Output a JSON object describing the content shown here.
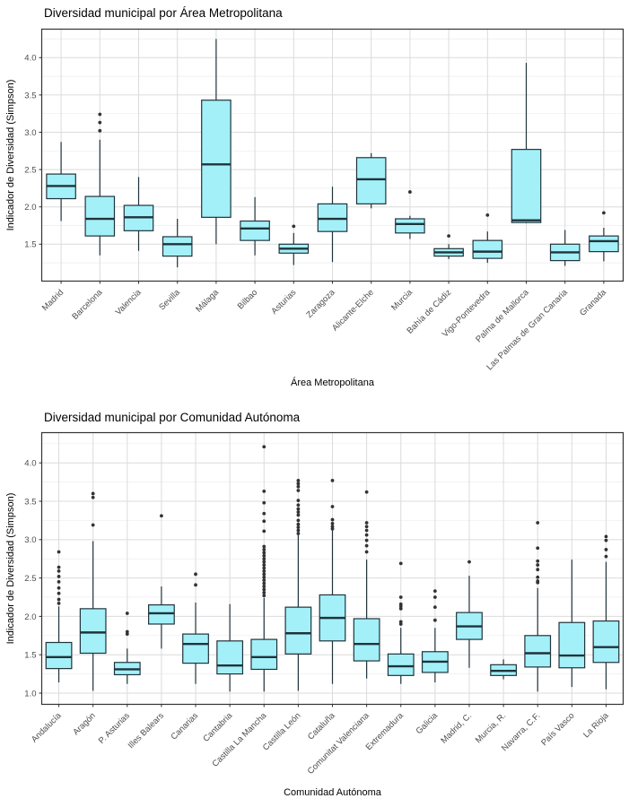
{
  "style": {
    "box_fill": "#A3F0F9",
    "box_stroke": "#20333B",
    "outlier_color": "#333333",
    "grid_major": "#DBDBDB",
    "grid_minor": "#EDEDED",
    "panel_border": "#333333",
    "panel_bg": "#FFFFFF",
    "tick_label_color": "#4D4D4D",
    "title_color": "#000000"
  },
  "chart_data": [
    {
      "type": "boxplot",
      "title": "Diversidad municipal por Área Metropolitana",
      "xlabel": "Área Metropolitana",
      "ylabel": "Indicador de Diversidad (Simpson)",
      "y_ticks": [
        1.5,
        2.0,
        2.5,
        3.0,
        3.5,
        4.0
      ],
      "y_domain": [
        1.005,
        4.382
      ],
      "grid": true,
      "legend": "none",
      "boxes": [
        {
          "label": "Madrid",
          "low": 1.81,
          "q1": 2.11,
          "median": 2.28,
          "q3": 2.44,
          "high": 2.87,
          "outliers": []
        },
        {
          "label": "Barcelona",
          "low": 1.35,
          "q1": 1.61,
          "median": 1.84,
          "q3": 2.14,
          "high": 2.9,
          "outliers": [
            3.02,
            3.13,
            3.24
          ]
        },
        {
          "label": "Valencia",
          "low": 1.41,
          "q1": 1.68,
          "median": 1.86,
          "q3": 2.02,
          "high": 2.4,
          "outliers": []
        },
        {
          "label": "Sevilla",
          "low": 1.19,
          "q1": 1.34,
          "median": 1.5,
          "q3": 1.6,
          "high": 1.84,
          "outliers": []
        },
        {
          "label": "Málaga",
          "low": 1.5,
          "q1": 1.86,
          "median": 2.57,
          "q3": 3.43,
          "high": 4.25,
          "outliers": []
        },
        {
          "label": "Bilbao",
          "low": 1.35,
          "q1": 1.55,
          "median": 1.71,
          "q3": 1.81,
          "high": 2.13,
          "outliers": []
        },
        {
          "label": "Asturias",
          "low": 1.22,
          "q1": 1.38,
          "median": 1.44,
          "q3": 1.5,
          "high": 1.65,
          "outliers": [
            1.74
          ]
        },
        {
          "label": "Zaragoza",
          "low": 1.26,
          "q1": 1.67,
          "median": 1.84,
          "q3": 2.04,
          "high": 2.27,
          "outliers": []
        },
        {
          "label": "Alicante-Elche",
          "low": 1.98,
          "q1": 2.04,
          "median": 2.37,
          "q3": 2.66,
          "high": 2.72,
          "outliers": []
        },
        {
          "label": "Murcia",
          "low": 1.57,
          "q1": 1.65,
          "median": 1.77,
          "q3": 1.84,
          "high": 1.88,
          "outliers": [
            2.2
          ]
        },
        {
          "label": "Bahía de Cádiz",
          "low": 1.3,
          "q1": 1.34,
          "median": 1.39,
          "q3": 1.44,
          "high": 1.5,
          "outliers": [
            1.61
          ]
        },
        {
          "label": "Vigo-Pontevedra",
          "low": 1.25,
          "q1": 1.31,
          "median": 1.4,
          "q3": 1.55,
          "high": 1.67,
          "outliers": [
            1.89
          ]
        },
        {
          "label": "Palma de Mallorca",
          "low": 1.78,
          "q1": 1.79,
          "median": 1.82,
          "q3": 2.77,
          "high": 3.93,
          "outliers": []
        },
        {
          "label": "Las Palmas de Gran Canaria",
          "low": 1.21,
          "q1": 1.28,
          "median": 1.39,
          "q3": 1.5,
          "high": 1.69,
          "outliers": []
        },
        {
          "label": "Granada",
          "low": 1.27,
          "q1": 1.4,
          "median": 1.54,
          "q3": 1.61,
          "high": 1.72,
          "outliers": [
            1.92
          ]
        }
      ]
    },
    {
      "type": "boxplot",
      "title": "Diversidad municipal por Comunidad Autónoma",
      "xlabel": "Comunidad Autónoma",
      "ylabel": "Indicador de Diversidad (Simpson)",
      "y_ticks": [
        1.0,
        1.5,
        2.0,
        2.5,
        3.0,
        3.5,
        4.0
      ],
      "y_domain": [
        0.854,
        4.394
      ],
      "grid": true,
      "legend": "none",
      "boxes": [
        {
          "label": "Andalucía",
          "low": 1.14,
          "q1": 1.32,
          "median": 1.47,
          "q3": 1.66,
          "high": 2.13,
          "outliers": [
            2.17,
            2.22,
            2.3,
            2.37,
            2.45,
            2.52,
            2.59,
            2.64,
            2.84
          ]
        },
        {
          "label": "Aragón",
          "low": 1.03,
          "q1": 1.52,
          "median": 1.79,
          "q3": 2.1,
          "high": 2.98,
          "outliers": [
            3.19,
            3.55,
            3.6
          ]
        },
        {
          "label": "P. Asturias",
          "low": 1.12,
          "q1": 1.24,
          "median": 1.31,
          "q3": 1.4,
          "high": 1.58,
          "outliers": [
            1.77,
            1.8,
            2.04
          ]
        },
        {
          "label": "Illes Balears",
          "low": 1.58,
          "q1": 1.9,
          "median": 2.04,
          "q3": 2.15,
          "high": 2.39,
          "outliers": [
            3.31
          ]
        },
        {
          "label": "Canarias",
          "low": 1.12,
          "q1": 1.39,
          "median": 1.64,
          "q3": 1.77,
          "high": 2.18,
          "outliers": [
            2.41,
            2.55
          ]
        },
        {
          "label": "Cantabria",
          "low": 1.02,
          "q1": 1.25,
          "median": 1.36,
          "q3": 1.68,
          "high": 2.16,
          "outliers": []
        },
        {
          "label": "Castilla La Mancha",
          "low": 1.02,
          "q1": 1.31,
          "median": 1.47,
          "q3": 1.7,
          "high": 2.24,
          "outliers": [
            2.27,
            2.31,
            2.35,
            2.39,
            2.43,
            2.47,
            2.51,
            2.55,
            2.59,
            2.63,
            2.67,
            2.71,
            2.75,
            2.79,
            2.83,
            2.87,
            2.91,
            3.11,
            3.24,
            3.34,
            3.48,
            3.63,
            4.21
          ]
        },
        {
          "label": "Castilla León",
          "low": 1.03,
          "q1": 1.51,
          "median": 1.78,
          "q3": 2.12,
          "high": 3.06,
          "outliers": [
            3.08,
            3.12,
            3.16,
            3.2,
            3.25,
            3.32,
            3.36,
            3.4,
            3.45,
            3.51,
            3.64,
            3.69,
            3.73,
            3.77
          ]
        },
        {
          "label": "Cataluña",
          "low": 1.12,
          "q1": 1.68,
          "median": 1.98,
          "q3": 2.28,
          "high": 3.12,
          "outliers": [
            3.14,
            3.17,
            3.21,
            3.26,
            3.43,
            3.77
          ]
        },
        {
          "label": "Comunitat Valenciana",
          "low": 1.19,
          "q1": 1.42,
          "median": 1.64,
          "q3": 1.97,
          "high": 2.74,
          "outliers": [
            2.84,
            2.92,
            2.99,
            3.06,
            3.12,
            3.17,
            3.22,
            3.62
          ]
        },
        {
          "label": "Extremadura",
          "low": 1.12,
          "q1": 1.23,
          "median": 1.35,
          "q3": 1.51,
          "high": 1.85,
          "outliers": [
            1.9,
            1.93,
            2.1,
            2.13,
            2.16,
            2.25,
            2.69
          ]
        },
        {
          "label": "Galicia",
          "low": 1.14,
          "q1": 1.27,
          "median": 1.41,
          "q3": 1.54,
          "high": 1.85,
          "outliers": [
            1.95,
            2.12,
            2.25,
            2.33
          ]
        },
        {
          "label": "Madrid, C.",
          "low": 1.33,
          "q1": 1.7,
          "median": 1.87,
          "q3": 2.05,
          "high": 2.53,
          "outliers": [
            2.71
          ]
        },
        {
          "label": "Murcia, R.",
          "low": 1.18,
          "q1": 1.23,
          "median": 1.29,
          "q3": 1.37,
          "high": 1.44,
          "outliers": []
        },
        {
          "label": "Navarra, C.F.",
          "low": 1.02,
          "q1": 1.34,
          "median": 1.52,
          "q3": 1.75,
          "high": 2.37,
          "outliers": [
            2.44,
            2.46,
            2.51,
            2.61,
            2.67,
            2.72,
            2.89,
            3.22
          ]
        },
        {
          "label": "País Vasco",
          "low": 1.08,
          "q1": 1.33,
          "median": 1.49,
          "q3": 1.92,
          "high": 2.74,
          "outliers": []
        },
        {
          "label": "La Rioja",
          "low": 1.05,
          "q1": 1.4,
          "median": 1.6,
          "q3": 1.94,
          "high": 2.71,
          "outliers": [
            2.78,
            2.87,
            2.99,
            3.04
          ]
        }
      ]
    }
  ]
}
